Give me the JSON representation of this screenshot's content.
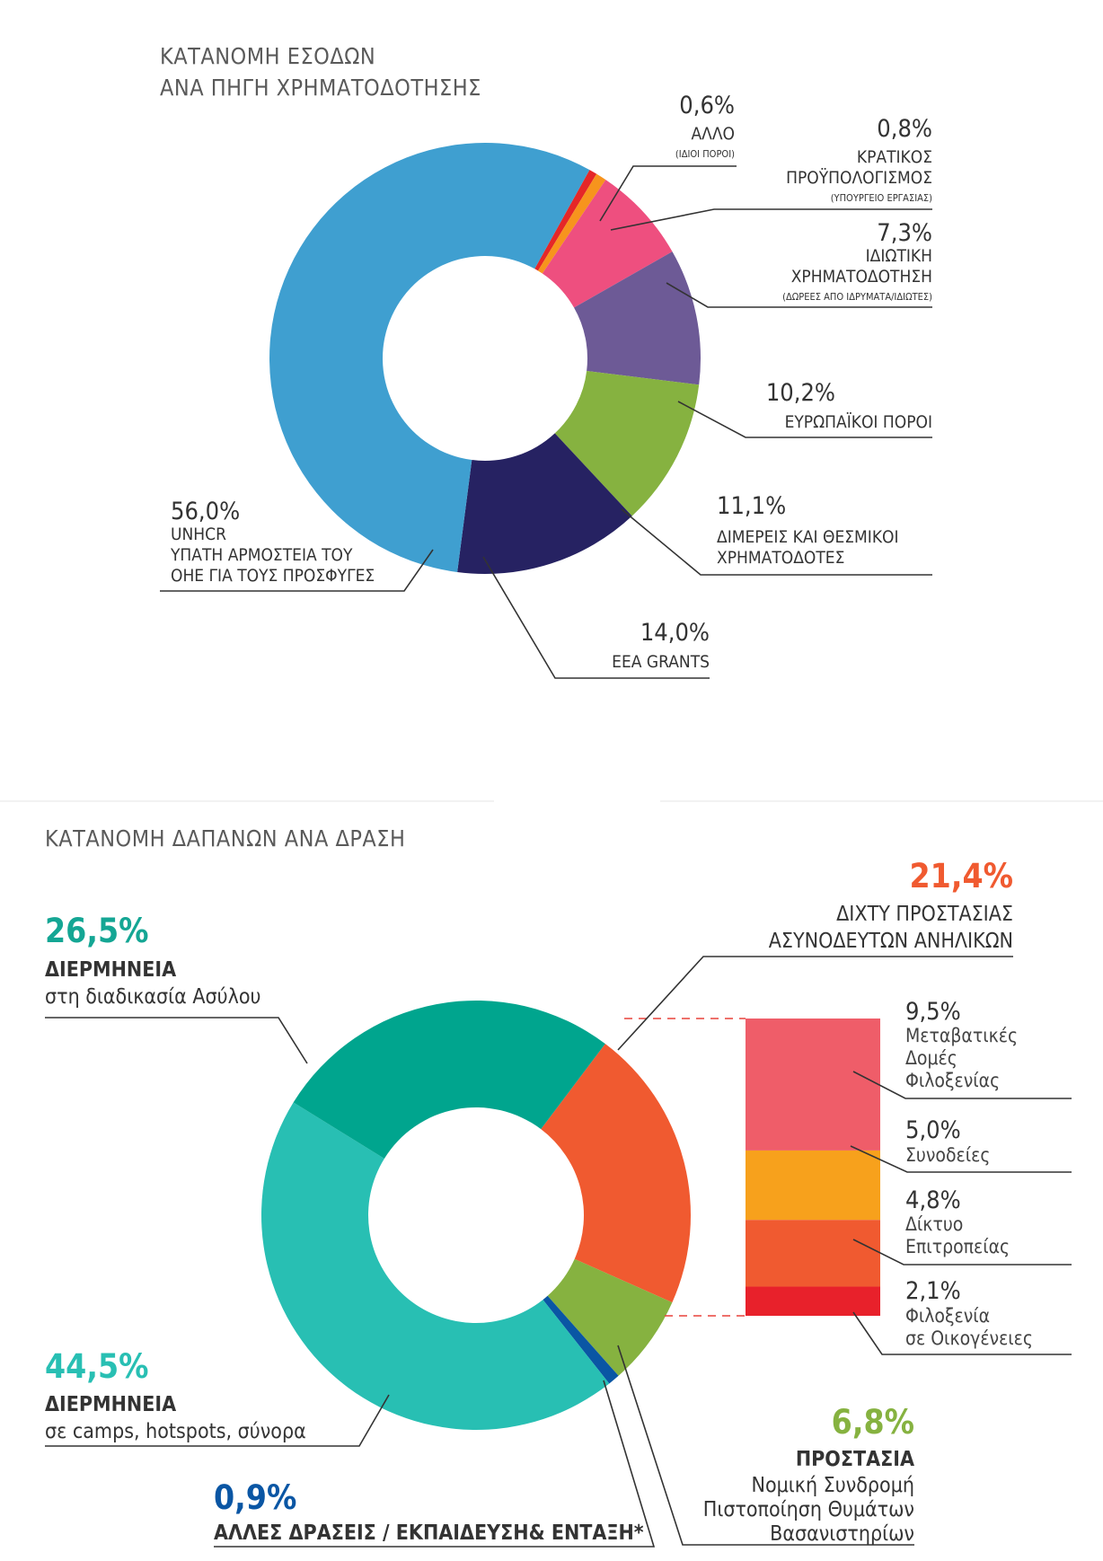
{
  "colors": {
    "unhcr": "#3f9fd0",
    "eea": "#262262",
    "bilateral": "#86b240",
    "european": "#6d5a96",
    "private": "#ee4f7f",
    "state": "#f7941d",
    "other": "#e52728",
    "interp_asylum": "#00a58e",
    "interp_camps": "#28bfb3",
    "other_actions": "#0a56a4",
    "protection": "#86b240",
    "minors": "#f05a30",
    "transit": "#ef5d69",
    "escorts": "#f7a11c",
    "guardianship": "#f05a30",
    "foster": "#e8212b"
  },
  "chart_data": [
    {
      "type": "pie",
      "title_lines": [
        "ΚΑΤΑΝΟΜΗ ΕΣΟΔΩΝ",
        "ΑΝΑ ΠΗΓΗ ΧΡΗΜΑΤΟΔΟΤΗΣΗΣ"
      ],
      "slices": [
        {
          "pct": "56,0%",
          "value": 56.0,
          "color_key": "unhcr",
          "lines": [
            "UNHCR",
            "ΥΠΑΤΗ ΑΡΜΟΣΤΕΙΑ ΤΟΥ",
            "ΟΗΕ ΓΙΑ ΤΟΥΣ ΠΡΟΣΦΥΓΕΣ"
          ]
        },
        {
          "pct": "14,0%",
          "value": 14.0,
          "color_key": "eea",
          "lines": [
            "EEA GRANTS"
          ]
        },
        {
          "pct": "11,1%",
          "value": 11.1,
          "color_key": "bilateral",
          "lines": [
            "ΔΙΜΕΡΕΙΣ ΚΑΙ ΘΕΣΜΙΚΟΙ",
            "ΧΡΗΜΑΤΟΔΟΤΕΣ"
          ]
        },
        {
          "pct": "10,2%",
          "value": 10.2,
          "color_key": "european",
          "lines": [
            "ΕΥΡΩΠΑΪΚΟΙ ΠΟΡΟΙ"
          ]
        },
        {
          "pct": "7,3%",
          "value": 7.3,
          "color_key": "private",
          "lines": [
            "ΙΔΙΩΤΙΚΗ",
            "ΧΡΗΜΑΤΟΔΟΤΗΣΗ"
          ],
          "note": "(ΔΩΡΕΕΣ ΑΠΟ ΙΔΡΥΜΑΤΑ/ΙΔΙΩΤΕΣ)"
        },
        {
          "pct": "0,8%",
          "value": 0.8,
          "color_key": "state",
          "lines": [
            "ΚΡΑΤΙΚΟΣ",
            "ΠΡΟΫΠΟΛΟΓΙΣΜΟΣ"
          ],
          "note": "(ΥΠΟΥΡΓΕΙΟ ΕΡΓΑΣΙΑΣ)"
        },
        {
          "pct": "0,6%",
          "value": 0.6,
          "color_key": "other",
          "lines": [
            "ΑΛΛΟ"
          ],
          "note": "(ΙΔΙΟΙ ΠΟΡΟΙ)"
        }
      ]
    },
    {
      "type": "pie",
      "title": "ΚΑΤΑΝΟΜΗ ΔΑΠΑΝΩΝ ΑΝΑ ΔΡΑΣΗ",
      "slices": [
        {
          "pct": "26,5%",
          "value": 26.5,
          "color_key": "interp_asylum",
          "head": "ΔΙΕΡΜΗΝΕΙΑ",
          "lines": [
            "στη διαδικασία Ασύλου"
          ]
        },
        {
          "pct": "21,4%",
          "value": 21.4,
          "color_key": "minors",
          "head": "ΔΙΧΤΥ ΠΡΟΣΤΑΣΙΑΣ",
          "lines": [
            "ΑΣΥΝΟΔΕΥΤΩΝ ΑΝΗΛΙΚΩΝ"
          ]
        },
        {
          "pct": "6,8%",
          "value": 6.8,
          "color_key": "protection",
          "head": "ΠΡΟΣΤΑΣΙΑ",
          "lines": [
            "Νομική Συνδρομή",
            "Πιστοποίηση Θυμάτων",
            "Βασανιστηρίων"
          ]
        },
        {
          "pct": "0,9%",
          "value": 0.9,
          "color_key": "other_actions",
          "head": "ΑΛΛΕΣ ΔΡΑΣΕΙΣ / ΕΚΠΑΙΔΕΥΣΗ& ΕΝΤΑΞΗ*",
          "lines": []
        },
        {
          "pct": "44,5%",
          "value": 44.5,
          "color_key": "interp_camps",
          "head": "ΔΙΕΡΜΗΝΕΙΑ",
          "lines": [
            "σε camps, hotspots, σύνορα"
          ]
        }
      ],
      "breakdown_of": "ΔΙΧΤΥ ΠΡΟΣΤΑΣΙΑΣ ΑΣΥΝΟΔΕΥΤΩΝ ΑΝΗΛΙΚΩΝ",
      "breakdown": [
        {
          "pct": "9,5%",
          "value": 9.5,
          "color_key": "transit",
          "lines": [
            "Μεταβατικές",
            "Δομές",
            "Φιλοξενίας"
          ]
        },
        {
          "pct": "5,0%",
          "value": 5.0,
          "color_key": "escorts",
          "lines": [
            "Συνοδείες"
          ]
        },
        {
          "pct": "4,8%",
          "value": 4.8,
          "color_key": "guardianship",
          "lines": [
            "Δίκτυο",
            "Επιτροπείας"
          ]
        },
        {
          "pct": "2,1%",
          "value": 2.1,
          "color_key": "foster",
          "lines": [
            "Φιλοξενία",
            "σε Οικογένειες"
          ]
        }
      ]
    }
  ]
}
